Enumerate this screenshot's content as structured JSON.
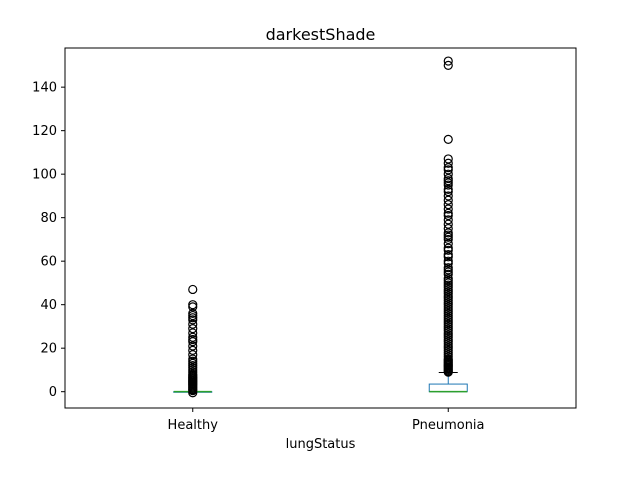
{
  "chart_data": {
    "type": "box",
    "title": "darkestShade",
    "xlabel": "lungStatus",
    "ylabel": "",
    "ylim": [
      -7.5,
      158
    ],
    "yticks": [
      0,
      20,
      40,
      60,
      80,
      100,
      120,
      140
    ],
    "grid": false,
    "legend": "none",
    "categories": [
      "Healthy",
      "Pneumonia"
    ],
    "colors": {
      "box": "#1f77b4",
      "median": "#2ca02c",
      "whisker": "#000000",
      "flier": "#000000"
    },
    "boxes": [
      {
        "category": "Healthy",
        "q1": 0,
        "median": 0,
        "q3": 0,
        "whisker_low": 0,
        "whisker_high": 0,
        "fliers": [
          -0.5,
          0.5,
          1,
          1.5,
          2,
          2.5,
          3,
          3.5,
          4,
          4.5,
          5,
          5.5,
          6,
          6.5,
          7,
          7.5,
          8,
          9,
          10,
          11,
          12,
          13,
          14,
          15,
          17,
          19,
          21,
          23,
          24,
          25,
          27,
          29,
          31,
          33,
          34,
          35,
          36,
          39,
          40,
          47
        ]
      },
      {
        "category": "Pneumonia",
        "q1": 0,
        "median": 0,
        "q3": 3.5,
        "whisker_low": 0,
        "whisker_high": 8.8,
        "fliers": [
          9,
          9.5,
          10,
          10.5,
          11,
          11.5,
          12,
          12.5,
          13,
          13.5,
          14,
          14.5,
          15,
          16,
          17,
          18,
          19,
          20,
          21,
          22,
          23,
          24,
          25,
          26,
          27,
          28,
          29,
          30,
          31,
          32,
          33,
          34,
          35,
          36,
          37,
          38,
          39,
          40,
          41,
          42,
          43,
          44,
          45,
          46,
          47,
          48,
          49,
          50,
          51,
          52,
          54,
          55,
          56,
          57,
          59,
          60,
          62,
          63,
          65,
          66,
          68,
          70,
          71,
          72,
          73,
          75,
          77,
          79,
          81,
          82,
          84,
          86,
          88,
          90,
          92,
          93,
          95,
          96,
          97,
          98,
          100,
          102,
          103,
          105,
          107,
          116,
          150,
          152
        ]
      }
    ]
  }
}
